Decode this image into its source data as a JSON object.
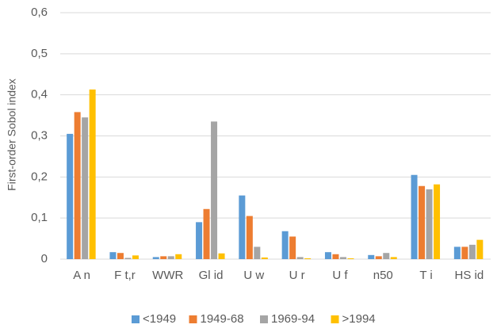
{
  "chart_data": {
    "type": "bar",
    "y_label": "First-order Sobol index",
    "categories": [
      "A n",
      "F t,r",
      "WWR",
      "Gl id",
      "U w",
      "U r",
      "U f",
      "n50",
      "T i",
      "HS id"
    ],
    "series": [
      {
        "name": "<1949",
        "color": "#5b9bd5",
        "values": [
          0.305,
          0.017,
          0.005,
          0.09,
          0.155,
          0.068,
          0.017,
          0.01,
          0.205,
          0.03
        ]
      },
      {
        "name": "1949-68",
        "color": "#ed7d31",
        "values": [
          0.358,
          0.015,
          0.007,
          0.122,
          0.105,
          0.055,
          0.012,
          0.007,
          0.178,
          0.03
        ]
      },
      {
        "name": "1969-94",
        "color": "#a5a5a5",
        "values": [
          0.345,
          0.003,
          0.007,
          0.335,
          0.03,
          0.005,
          0.005,
          0.015,
          0.17,
          0.035
        ]
      },
      {
        "name": ">1994",
        "color": "#ffc000",
        "values": [
          0.413,
          0.009,
          0.012,
          0.014,
          0.004,
          0.002,
          0.002,
          0.005,
          0.182,
          0.047
        ]
      }
    ],
    "ylim": [
      0,
      0.6
    ],
    "yticks": [
      0,
      {
        "value": 0.1,
        "label": "0,1"
      },
      {
        "value": 0.2,
        "label": "0,2"
      },
      {
        "value": 0.3,
        "label": "0,3"
      },
      {
        "value": 0.4,
        "label": "0,4"
      },
      {
        "value": 0.5,
        "label": "0,5"
      },
      {
        "value": 0.6,
        "label": "0,6"
      }
    ],
    "grid": true,
    "legend": "bottom"
  }
}
